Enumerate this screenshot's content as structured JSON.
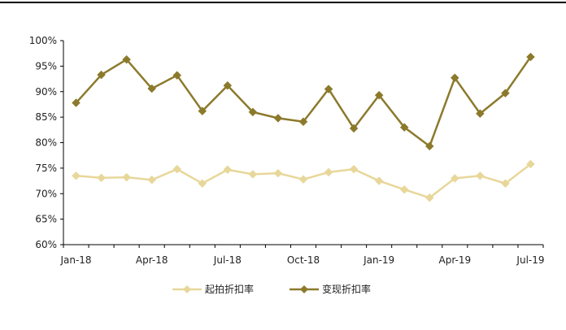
{
  "chart_data": {
    "type": "line",
    "title": "",
    "xlabel": "",
    "ylabel": "",
    "categories": [
      "Jan-18",
      "Feb-18",
      "Mar-18",
      "Apr-18",
      "May-18",
      "Jun-18",
      "Jul-18",
      "Aug-18",
      "Sep-18",
      "Oct-18",
      "Nov-18",
      "Dec-18",
      "Jan-19",
      "Feb-19",
      "Mar-19",
      "Apr-19",
      "May-19",
      "Jun-19",
      "Jul-19"
    ],
    "x_tick_labels": [
      "Jan-18",
      "Apr-18",
      "Jul-18",
      "Oct-18",
      "Jan-19",
      "Apr-19",
      "Jul-19"
    ],
    "y_tick_labels": [
      "60%",
      "65%",
      "70%",
      "75%",
      "80%",
      "85%",
      "90%",
      "95%",
      "100%"
    ],
    "ylim": [
      60,
      100
    ],
    "y_unit": "%",
    "grid": false,
    "legend_position": "bottom",
    "series": [
      {
        "name": "起拍折扣率",
        "color": "#e8d79a",
        "marker": "diamond",
        "values": [
          73.5,
          73.1,
          73.2,
          72.7,
          74.8,
          72.0,
          74.7,
          73.8,
          74.0,
          72.8,
          74.2,
          74.8,
          72.5,
          70.8,
          69.2,
          73.0,
          73.5,
          72.0,
          75.8
        ]
      },
      {
        "name": "变现折扣率",
        "color": "#8c7a2c",
        "marker": "diamond",
        "values": [
          87.8,
          93.3,
          96.3,
          90.6,
          93.2,
          86.2,
          91.2,
          86.0,
          84.8,
          84.1,
          90.5,
          82.8,
          89.3,
          83.0,
          79.3,
          92.7,
          85.7,
          89.7,
          96.8
        ]
      }
    ]
  }
}
